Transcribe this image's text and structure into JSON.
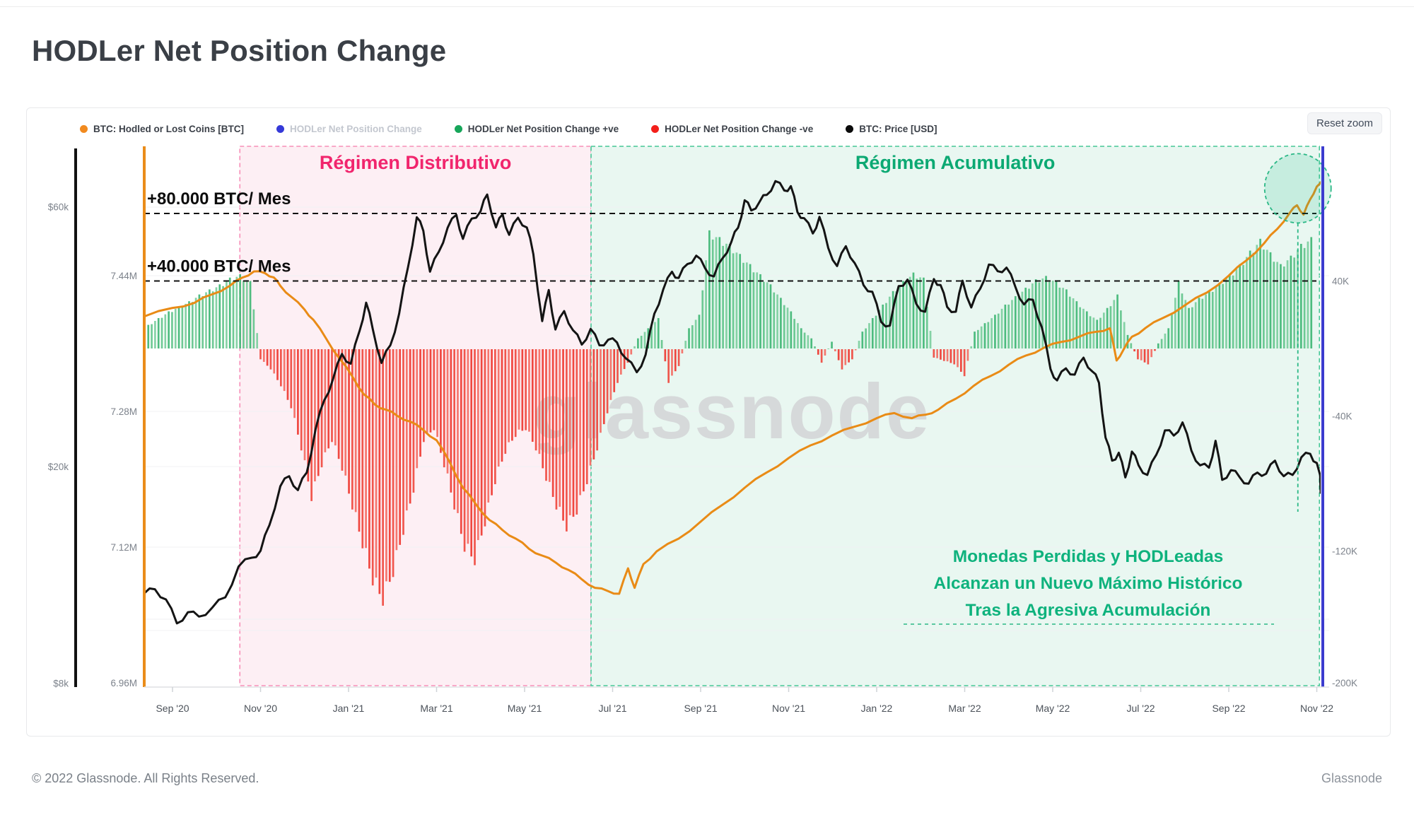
{
  "page": {
    "title": "HODLer Net Position Change",
    "reset_button": "Reset zoom",
    "watermark": "glassnode",
    "footer_left": "© 2022 Glassnode. All Rights Reserved.",
    "footer_right": "Glassnode"
  },
  "legend": [
    {
      "label": "BTC: Hodled or Lost Coins [BTC]",
      "color": "#f18a1f",
      "muted": false
    },
    {
      "label": "HODLer Net Position Change",
      "color": "#3539d8",
      "muted": true
    },
    {
      "label": "HODLer Net Position Change +ve",
      "color": "#17a65a",
      "muted": false
    },
    {
      "label": "HODLer Net Position Change -ve",
      "color": "#f31f1a",
      "muted": false
    },
    {
      "label": "BTC: Price [USD]",
      "color": "#0b0b0b",
      "muted": false
    }
  ],
  "chart_data": {
    "type": "mixed-bar-line",
    "title": "HODLer Net Position Change",
    "x_axis": {
      "unit": "months since Sep 2020",
      "tick_step_months": 2,
      "ticks": [
        "Sep '20",
        "Nov '20",
        "Jan '21",
        "Mar '21",
        "May '21",
        "Jul '21",
        "Sep '21",
        "Nov '21",
        "Jan '22",
        "Mar '22",
        "May '22",
        "Jul '22",
        "Sep '22",
        "Nov '22"
      ]
    },
    "axes": {
      "price_usd": {
        "side": "left",
        "scale": "log",
        "ticks": [
          {
            "label": "$60k",
            "k": 60
          },
          {
            "label": "$20k",
            "k": 20
          },
          {
            "label": "$8k",
            "k": 8
          }
        ]
      },
      "hodled_coins": {
        "side": "left",
        "scale": "linear",
        "ticks": [
          {
            "label": "7.44M",
            "M": 7.44
          },
          {
            "label": "7.28M",
            "M": 7.28
          },
          {
            "label": "7.12M",
            "M": 7.12
          },
          {
            "label": "6.96M",
            "M": 6.96
          }
        ]
      },
      "net_position_change": {
        "side": "right",
        "scale": "linear",
        "ticks": [
          {
            "label": "40K",
            "k": 40
          },
          {
            "label": "-40K",
            "k": -40
          },
          {
            "label": "-120K",
            "k": -120
          },
          {
            "label": "-200K",
            "k": -200
          }
        ]
      }
    },
    "regions": [
      {
        "id": "distributivo",
        "label": "Régimen Distributivo",
        "start_m": 1.53,
        "end_m": 9.51,
        "fill": "#fdeff4",
        "border": "#f78fb8",
        "label_color": "#f1256d"
      },
      {
        "id": "acumulativo",
        "label": "Régimen Acumulativo",
        "start_m": 9.51,
        "end_m": 26.06,
        "fill": "#e9f7f1",
        "border": "#45c796",
        "label_color": "#0ca973"
      }
    ],
    "thresholds": [
      {
        "label": "+80.000 BTC/ Mes",
        "value_k": 80
      },
      {
        "label": "+40.000 BTC/ Mes",
        "value_k": 40
      }
    ],
    "annotation": {
      "lines": [
        "Monedas Perdidas y HODLeadas",
        "Alcanzan un Nuevo Máximo Histórico",
        "Tras la Agresiva Acumulación"
      ],
      "color": "#0eb27d",
      "circle": {
        "center_m": 25.57,
        "center_value_M": 7.543
      }
    },
    "series": [
      {
        "name": "HODLer Net Position Change",
        "type": "bar",
        "axis": "net_position_change",
        "color_positive": "#3cb572",
        "color_negative": "#f0453b",
        "start_m": -0.55,
        "step_m": 0.2318,
        "values_k": [
          14,
          18,
          22,
          25,
          28,
          32,
          35,
          38,
          42,
          44,
          40,
          -6,
          -12,
          -22,
          -35,
          -60,
          -90,
          -70,
          -55,
          -72,
          -95,
          -118,
          -140,
          -152,
          -135,
          -110,
          -85,
          -55,
          -48,
          -70,
          -95,
          -120,
          -128,
          -105,
          -80,
          -62,
          -52,
          -48,
          -60,
          -78,
          -95,
          -108,
          -98,
          -80,
          -60,
          -38,
          -20,
          -8,
          6,
          12,
          18,
          -20,
          -10,
          12,
          20,
          70,
          66,
          62,
          56,
          50,
          44,
          38,
          30,
          22,
          12,
          6,
          -8,
          4,
          -12,
          -6,
          10,
          18,
          26,
          34,
          40,
          45,
          42,
          -5,
          -7,
          -9,
          -16,
          10,
          15,
          20,
          26,
          31,
          36,
          41,
          43,
          40,
          35,
          28,
          22,
          17,
          24,
          32,
          8,
          -6,
          -9,
          3,
          12,
          40,
          24,
          30,
          34,
          39,
          44,
          50,
          58,
          65,
          57,
          50,
          55,
          62,
          66,
          55,
          46,
          40
        ]
      },
      {
        "name": "BTC: Hodled or Lost Coins [BTC]",
        "type": "line",
        "axis": "hodled_coins",
        "color": "#e98b16",
        "points_m_M": [
          [
            -0.64,
            7.392
          ],
          [
            0,
            7.402
          ],
          [
            0.5,
            7.408
          ],
          [
            0.9,
            7.418
          ],
          [
            1.3,
            7.428
          ],
          [
            1.6,
            7.438
          ],
          [
            1.85,
            7.445
          ],
          [
            2.1,
            7.443
          ],
          [
            2.3,
            7.438
          ],
          [
            2.45,
            7.428
          ],
          [
            2.7,
            7.415
          ],
          [
            3.0,
            7.4
          ],
          [
            3.2,
            7.388
          ],
          [
            3.5,
            7.365
          ],
          [
            3.8,
            7.342
          ],
          [
            4.1,
            7.32
          ],
          [
            4.35,
            7.3
          ],
          [
            4.6,
            7.288
          ],
          [
            4.85,
            7.282
          ],
          [
            5.1,
            7.275
          ],
          [
            5.4,
            7.268
          ],
          [
            5.7,
            7.258
          ],
          [
            6.0,
            7.246
          ],
          [
            6.3,
            7.22
          ],
          [
            6.6,
            7.19
          ],
          [
            6.9,
            7.17
          ],
          [
            7.2,
            7.152
          ],
          [
            7.5,
            7.14
          ],
          [
            7.8,
            7.13
          ],
          [
            8.1,
            7.118
          ],
          [
            8.4,
            7.11
          ],
          [
            8.7,
            7.102
          ],
          [
            9.0,
            7.093
          ],
          [
            9.3,
            7.082
          ],
          [
            9.6,
            7.072
          ],
          [
            9.9,
            7.068
          ],
          [
            10.15,
            7.065
          ],
          [
            10.35,
            7.095
          ],
          [
            10.5,
            7.072
          ],
          [
            10.7,
            7.1
          ],
          [
            11.0,
            7.115
          ],
          [
            11.5,
            7.13
          ],
          [
            12.0,
            7.15
          ],
          [
            12.5,
            7.17
          ],
          [
            13.0,
            7.19
          ],
          [
            13.5,
            7.208
          ],
          [
            14.0,
            7.225
          ],
          [
            14.5,
            7.24
          ],
          [
            15.0,
            7.252
          ],
          [
            15.5,
            7.262
          ],
          [
            16.0,
            7.272
          ],
          [
            16.4,
            7.278
          ],
          [
            16.8,
            7.272
          ],
          [
            17.1,
            7.276
          ],
          [
            17.4,
            7.282
          ],
          [
            17.8,
            7.295
          ],
          [
            18.2,
            7.31
          ],
          [
            18.6,
            7.322
          ],
          [
            19.0,
            7.335
          ],
          [
            19.4,
            7.346
          ],
          [
            19.8,
            7.355
          ],
          [
            20.2,
            7.362
          ],
          [
            20.6,
            7.368
          ],
          [
            21.0,
            7.374
          ],
          [
            21.3,
            7.378
          ],
          [
            21.45,
            7.34
          ],
          [
            21.6,
            7.352
          ],
          [
            21.8,
            7.368
          ],
          [
            22.1,
            7.378
          ],
          [
            22.5,
            7.39
          ],
          [
            23.0,
            7.405
          ],
          [
            23.5,
            7.42
          ],
          [
            24.0,
            7.44
          ],
          [
            24.4,
            7.458
          ],
          [
            24.8,
            7.478
          ],
          [
            25.1,
            7.495
          ],
          [
            25.4,
            7.515
          ],
          [
            25.55,
            7.523
          ],
          [
            25.7,
            7.512
          ],
          [
            25.85,
            7.53
          ],
          [
            26.0,
            7.545
          ],
          [
            26.15,
            7.55
          ]
        ]
      },
      {
        "name": "BTC: Price [USD]",
        "type": "line",
        "axis": "price_usd",
        "color": "#141414",
        "points_m_usdk": [
          [
            -0.64,
            11.7
          ],
          [
            -0.4,
            11.9
          ],
          [
            -0.15,
            11.4
          ],
          [
            0.1,
            10.3
          ],
          [
            0.35,
            10.8
          ],
          [
            0.6,
            10.6
          ],
          [
            0.9,
            11.0
          ],
          [
            1.2,
            11.5
          ],
          [
            1.5,
            13.1
          ],
          [
            1.8,
            13.6
          ],
          [
            2.0,
            14.0
          ],
          [
            2.2,
            15.6
          ],
          [
            2.45,
            18.4
          ],
          [
            2.65,
            19.2
          ],
          [
            2.85,
            18.1
          ],
          [
            3.05,
            19.5
          ],
          [
            3.25,
            23.4
          ],
          [
            3.45,
            26.5
          ],
          [
            3.65,
            29.0
          ],
          [
            3.85,
            32.2
          ],
          [
            4.05,
            30.9
          ],
          [
            4.25,
            35.5
          ],
          [
            4.4,
            40.0
          ],
          [
            4.55,
            35.8
          ],
          [
            4.75,
            31.0
          ],
          [
            4.95,
            33.4
          ],
          [
            5.15,
            38.2
          ],
          [
            5.35,
            46.4
          ],
          [
            5.55,
            57.4
          ],
          [
            5.7,
            54.2
          ],
          [
            5.85,
            45.6
          ],
          [
            6.05,
            49.6
          ],
          [
            6.25,
            54.9
          ],
          [
            6.45,
            58.0
          ],
          [
            6.6,
            52.4
          ],
          [
            6.8,
            57.1
          ],
          [
            7.0,
            58.9
          ],
          [
            7.15,
            63.2
          ],
          [
            7.35,
            55.0
          ],
          [
            7.5,
            58.1
          ],
          [
            7.65,
            53.3
          ],
          [
            7.85,
            57.3
          ],
          [
            8.05,
            55.0
          ],
          [
            8.2,
            49.1
          ],
          [
            8.4,
            37.0
          ],
          [
            8.55,
            42.2
          ],
          [
            8.7,
            35.7
          ],
          [
            8.9,
            38.6
          ],
          [
            9.1,
            35.6
          ],
          [
            9.3,
            33.5
          ],
          [
            9.5,
            35.8
          ],
          [
            9.7,
            33.4
          ],
          [
            9.9,
            34.2
          ],
          [
            10.1,
            33.8
          ],
          [
            10.3,
            31.6
          ],
          [
            10.55,
            29.8
          ],
          [
            10.75,
            32.1
          ],
          [
            10.95,
            38.2
          ],
          [
            11.15,
            42.3
          ],
          [
            11.35,
            45.6
          ],
          [
            11.5,
            44.4
          ],
          [
            11.7,
            47.1
          ],
          [
            11.9,
            48.8
          ],
          [
            12.1,
            46.3
          ],
          [
            12.3,
            44.7
          ],
          [
            12.5,
            48.3
          ],
          [
            12.7,
            51.8
          ],
          [
            12.85,
            54.9
          ],
          [
            13.0,
            61.7
          ],
          [
            13.15,
            59.1
          ],
          [
            13.35,
            61.5
          ],
          [
            13.5,
            63.1
          ],
          [
            13.7,
            66.9
          ],
          [
            13.9,
            64.3
          ],
          [
            14.05,
            65.5
          ],
          [
            14.2,
            58.7
          ],
          [
            14.35,
            57.2
          ],
          [
            14.55,
            53.6
          ],
          [
            14.7,
            57.5
          ],
          [
            14.9,
            50.4
          ],
          [
            15.1,
            46.7
          ],
          [
            15.3,
            50.8
          ],
          [
            15.5,
            47.3
          ],
          [
            15.7,
            43.1
          ],
          [
            15.9,
            41.9
          ],
          [
            16.1,
            36.9
          ],
          [
            16.3,
            36.3
          ],
          [
            16.5,
            42.9
          ],
          [
            16.7,
            44.1
          ],
          [
            16.9,
            39.8
          ],
          [
            17.1,
            38.5
          ],
          [
            17.3,
            44.2
          ],
          [
            17.45,
            43.1
          ],
          [
            17.6,
            39.3
          ],
          [
            17.8,
            38.5
          ],
          [
            17.95,
            43.9
          ],
          [
            18.15,
            39.2
          ],
          [
            18.35,
            42.4
          ],
          [
            18.55,
            47.0
          ],
          [
            18.75,
            45.7
          ],
          [
            18.95,
            46.4
          ],
          [
            19.15,
            42.8
          ],
          [
            19.35,
            39.7
          ],
          [
            19.55,
            40.5
          ],
          [
            19.75,
            36.1
          ],
          [
            19.95,
            30.2
          ],
          [
            20.1,
            28.8
          ],
          [
            20.3,
            30.3
          ],
          [
            20.5,
            29.5
          ],
          [
            20.7,
            31.7
          ],
          [
            20.9,
            29.9
          ],
          [
            21.05,
            28.5
          ],
          [
            21.2,
            22.6
          ],
          [
            21.35,
            20.5
          ],
          [
            21.5,
            21.2
          ],
          [
            21.65,
            19.1
          ],
          [
            21.8,
            21.3
          ],
          [
            21.95,
            20.1
          ],
          [
            22.15,
            19.3
          ],
          [
            22.35,
            21.0
          ],
          [
            22.55,
            23.3
          ],
          [
            22.75,
            22.8
          ],
          [
            22.95,
            24.1
          ],
          [
            23.15,
            21.4
          ],
          [
            23.35,
            20.1
          ],
          [
            23.55,
            19.9
          ],
          [
            23.7,
            22.3
          ],
          [
            23.85,
            18.9
          ],
          [
            24.05,
            19.7
          ],
          [
            24.25,
            19.1
          ],
          [
            24.45,
            18.6
          ],
          [
            24.65,
            19.5
          ],
          [
            24.85,
            19.4
          ],
          [
            25.05,
            20.5
          ],
          [
            25.25,
            19.2
          ],
          [
            25.45,
            19.3
          ],
          [
            25.65,
            20.8
          ],
          [
            25.85,
            21.1
          ],
          [
            26.0,
            20.3
          ],
          [
            26.15,
            17.9
          ]
        ]
      }
    ]
  }
}
